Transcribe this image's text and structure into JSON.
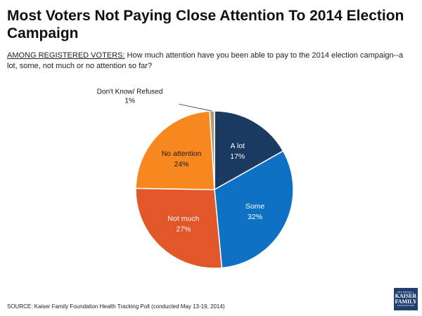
{
  "header": {
    "title": "Most Voters Not Paying Close Attention To 2014 Election Campaign",
    "subtitle_lead": "AMONG REGISTERED VOTERS:",
    "subtitle_rest": " How much attention have you been able to pay to the 2014 election campaign--a lot, some, not much or no attention so far?"
  },
  "chart_data": {
    "type": "pie",
    "title": "Most Voters Not Paying Close Attention To 2014 Election Campaign",
    "slices": [
      {
        "label": "A lot",
        "value": 17,
        "display": "17%",
        "color": "#1b3a61",
        "text_color": "#ffffff"
      },
      {
        "label": "Some",
        "value": 32,
        "display": "32%",
        "color": "#0f71c4",
        "text_color": "#ffffff"
      },
      {
        "label": "Not much",
        "value": 27,
        "display": "27%",
        "color": "#e1572a",
        "text_color": "#ffffff"
      },
      {
        "label": "No attention",
        "value": 24,
        "display": "24%",
        "color": "#f6881f",
        "text_color": "#1a1a1a"
      },
      {
        "label": "Don't Know/ Refused",
        "value": 1,
        "display": "1%",
        "color": "#b59a7a",
        "text_color": "#111111",
        "label_outside": true
      }
    ],
    "start_angle_deg": 0,
    "direction": "clockwise"
  },
  "footer": {
    "source": "SOURCE: Kaiser Family Foundation Health Tracking Poll (conducted May 13-19, 2014)"
  },
  "logo": {
    "line1": "THE HENRY J.",
    "line2": "KAISER",
    "line3": "FAMILY",
    "line4": "FOUNDATION"
  }
}
